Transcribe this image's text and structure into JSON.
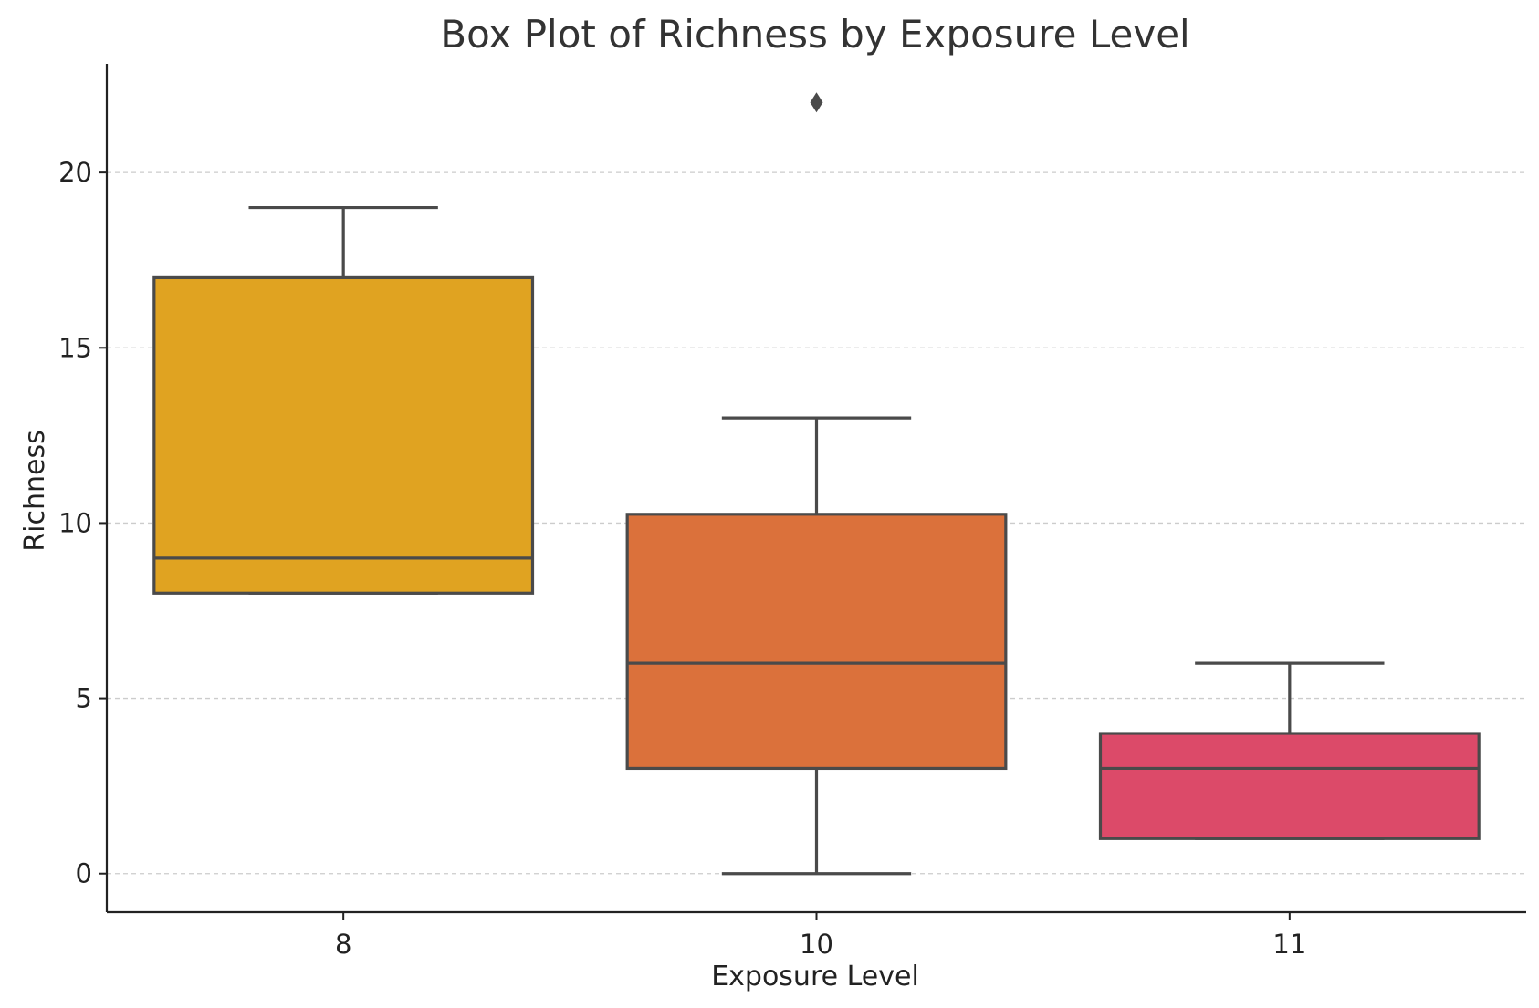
{
  "chart_data": {
    "type": "box",
    "title": "Box Plot of Richness by Exposure Level",
    "xlabel": "Exposure Level",
    "ylabel": "Richness",
    "categories": [
      "8",
      "10",
      "11"
    ],
    "ylim": [
      -1.1,
      23.1
    ],
    "yticks": [
      0,
      5,
      10,
      15,
      20
    ],
    "grid": {
      "y": true,
      "x": false,
      "style": "dashed"
    },
    "boxes": [
      {
        "category": "8",
        "whisker_low": 8,
        "q1": 8,
        "median": 9,
        "q3": 17,
        "whisker_high": 19,
        "outliers": [],
        "color": "#E0A321"
      },
      {
        "category": "10",
        "whisker_low": 0,
        "q1": 3,
        "median": 6,
        "q3": 10.25,
        "whisker_high": 13,
        "outliers": [
          22
        ],
        "color": "#DB713B"
      },
      {
        "category": "11",
        "whisker_low": 1,
        "q1": 1,
        "median": 3,
        "q3": 4,
        "whisker_high": 6,
        "outliers": [],
        "color": "#DC4A69"
      }
    ],
    "colors": {
      "box_edge": "#4a4a4a",
      "axis": "#222222",
      "grid": "#cccccc",
      "text": "#222222",
      "title": "#333333"
    }
  }
}
